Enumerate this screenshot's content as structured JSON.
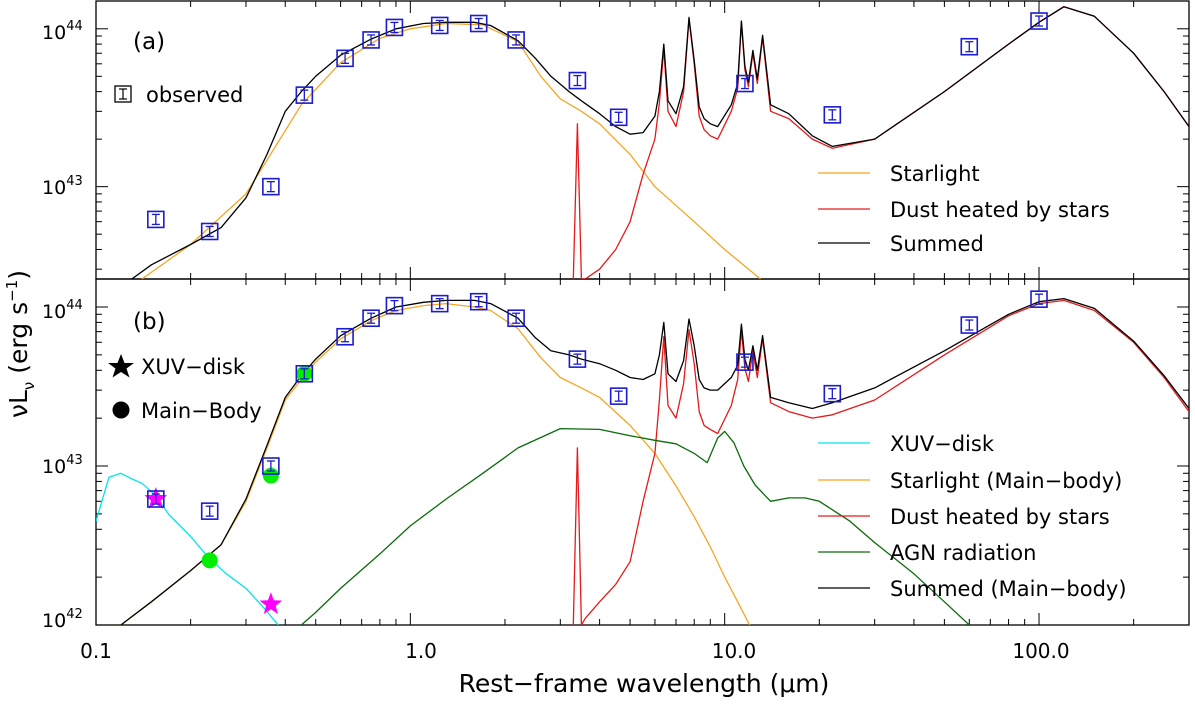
{
  "chart_data": [
    {
      "type": "line",
      "panel_label": "(a)",
      "xscale": "log",
      "yscale": "log",
      "xlim": [
        0.1,
        300
      ],
      "ylim": [
        2.6e+42,
        1.5e+44
      ],
      "observed": {
        "legend_label": "observed",
        "points": [
          {
            "x": 0.155,
            "y": 6.2e+42
          },
          {
            "x": 0.23,
            "y": 5.2e+42
          },
          {
            "x": 0.36,
            "y": 1e+43
          },
          {
            "x": 0.46,
            "y": 3.8e+43
          },
          {
            "x": 0.62,
            "y": 6.5e+43
          },
          {
            "x": 0.75,
            "y": 8.5e+43
          },
          {
            "x": 0.89,
            "y": 1.02e+44
          },
          {
            "x": 1.24,
            "y": 1.05e+44
          },
          {
            "x": 1.65,
            "y": 1.08e+44
          },
          {
            "x": 2.17,
            "y": 8.5e+43
          },
          {
            "x": 3.4,
            "y": 4.7e+43
          },
          {
            "x": 4.6,
            "y": 2.75e+43
          },
          {
            "x": 11.6,
            "y": 4.5e+43
          },
          {
            "x": 22,
            "y": 2.85e+43
          },
          {
            "x": 60,
            "y": 7.7e+43
          },
          {
            "x": 100,
            "y": 1.12e+44
          }
        ]
      },
      "series": [
        {
          "name": "Starlight",
          "color": "#f5a623",
          "x": [
            0.14,
            0.2,
            0.3,
            0.45,
            0.6,
            0.8,
            1.0,
            1.3,
            1.7,
            2.2,
            2.6,
            3.0,
            3.5,
            4.0,
            5.0,
            6.0,
            8.0,
            10.0,
            13.0
          ],
          "y": [
            2.6e+42,
            4.3e+42,
            9e+42,
            3.3e+43,
            6.1e+43,
            8.7e+43,
            1e+44,
            1.08e+44,
            1.06e+44,
            8.3e+43,
            5e+43,
            3.6e+43,
            3e+43,
            2.5e+43,
            1.6e+43,
            1e+43,
            6e+42,
            4e+42,
            2.6e+42
          ]
        },
        {
          "name": "Dust heated by stars",
          "color": "#e41a1c",
          "x": [
            3.3,
            3.4,
            3.5,
            3.6,
            4.0,
            4.5,
            5.0,
            5.5,
            6.0,
            6.2,
            6.4,
            6.6,
            7.0,
            7.4,
            7.7,
            8.0,
            8.3,
            8.6,
            9.0,
            9.5,
            10.5,
            11.0,
            11.3,
            11.6,
            11.9,
            12.3,
            12.7,
            13.2,
            14.0,
            16.0,
            19.0,
            22.0,
            30.0,
            50.0,
            80.0,
            100.0,
            120.0,
            150.0,
            200.0,
            250.0,
            300.0
          ],
          "y": [
            2.6e+42,
            2.5e+43,
            2.6e+42,
            2.6e+42,
            3e+42,
            4e+42,
            6e+42,
            1.2e+43,
            2e+43,
            3.4e+43,
            7.5e+43,
            3e+43,
            2.4e+43,
            4e+43,
            1.15e+44,
            6e+43,
            2.8e+43,
            2.3e+43,
            2.1e+43,
            2e+43,
            3e+43,
            4.2e+43,
            1.1e+44,
            5.5e+43,
            4.3e+43,
            7e+43,
            4.5e+43,
            8.8e+43,
            3e+43,
            2.7e+43,
            2e+43,
            1.75e+43,
            2e+43,
            4e+43,
            8e+43,
            1.1e+44,
            1.38e+44,
            1.2e+44,
            7e+43,
            4e+43,
            2.4e+43
          ]
        },
        {
          "name": "Summed",
          "color": "#000000",
          "x": [
            0.13,
            0.15,
            0.2,
            0.25,
            0.3,
            0.35,
            0.4,
            0.45,
            0.5,
            0.6,
            0.75,
            0.9,
            1.1,
            1.3,
            1.6,
            1.8,
            2.2,
            2.5,
            2.8,
            3.2,
            3.5,
            4.0,
            4.5,
            5.0,
            5.5,
            6.0,
            6.2,
            6.4,
            6.6,
            7.0,
            7.4,
            7.7,
            8.0,
            8.3,
            8.6,
            9.0,
            9.5,
            10.5,
            11.0,
            11.3,
            11.6,
            11.9,
            12.3,
            12.7,
            13.2,
            14.0,
            16.0,
            19.0,
            22.0,
            30.0,
            50.0,
            80.0,
            100.0,
            120.0,
            150.0,
            200.0,
            250.0,
            300.0
          ],
          "y": [
            2.6e+42,
            3.2e+42,
            4.3e+42,
            5.5e+42,
            8.5e+42,
            1.6e+43,
            3e+43,
            4e+43,
            5e+43,
            6.8e+43,
            8.6e+43,
            1e+44,
            1.08e+44,
            1.1e+44,
            1.1e+44,
            1.05e+44,
            8.4e+43,
            6.5e+43,
            5e+43,
            4e+43,
            3.5e+43,
            2.9e+43,
            2.4e+43,
            2.15e+43,
            2.2e+43,
            2.8e+43,
            4e+43,
            8e+43,
            3.5e+43,
            2.9e+43,
            4.3e+43,
            1.18e+44,
            6.3e+43,
            3.2e+43,
            2.7e+43,
            2.5e+43,
            2.4e+43,
            3.3e+43,
            4.5e+43,
            1.12e+44,
            5.8e+43,
            4.6e+43,
            7.3e+43,
            4.8e+43,
            9.1e+43,
            3.3e+43,
            2.9e+43,
            2.1e+43,
            1.8e+43,
            2e+43,
            4e+43,
            8e+43,
            1.1e+44,
            1.38e+44,
            1.2e+44,
            7e+43,
            4e+43,
            2.4e+43
          ]
        }
      ]
    },
    {
      "type": "line",
      "panel_label": "(b)",
      "xscale": "log",
      "yscale": "log",
      "xlim": [
        0.1,
        300
      ],
      "ylim": [
        1e+42,
        1.5e+44
      ],
      "observed": {
        "points": [
          {
            "x": 0.155,
            "y": 6.2e+42
          },
          {
            "x": 0.23,
            "y": 5.2e+42
          },
          {
            "x": 0.36,
            "y": 1e+43
          },
          {
            "x": 0.46,
            "y": 3.8e+43
          },
          {
            "x": 0.62,
            "y": 6.5e+43
          },
          {
            "x": 0.75,
            "y": 8.5e+43
          },
          {
            "x": 0.89,
            "y": 1.02e+44
          },
          {
            "x": 1.24,
            "y": 1.05e+44
          },
          {
            "x": 1.65,
            "y": 1.08e+44
          },
          {
            "x": 2.17,
            "y": 8.5e+43
          },
          {
            "x": 3.4,
            "y": 4.7e+43
          },
          {
            "x": 4.6,
            "y": 2.75e+43
          },
          {
            "x": 11.6,
            "y": 4.5e+43
          },
          {
            "x": 22,
            "y": 2.85e+43
          },
          {
            "x": 60,
            "y": 7.7e+43
          },
          {
            "x": 100,
            "y": 1.12e+44
          }
        ]
      },
      "xuv_disk_points": {
        "legend_label": "XUV−disk",
        "color": "#ff00ff",
        "points": [
          {
            "x": 0.155,
            "y": 6.2e+42
          },
          {
            "x": 0.36,
            "y": 1.35e+42
          }
        ]
      },
      "main_body_points": {
        "legend_label": "Main−Body",
        "color": "#00ee00",
        "points": [
          {
            "x": 0.23,
            "y": 2.55e+42
          },
          {
            "x": 0.36,
            "y": 8.7e+42
          },
          {
            "x": 0.46,
            "y": 3.8e+43
          }
        ]
      },
      "series": [
        {
          "name": "XUV−disk",
          "color": "#00e5ee",
          "x": [
            0.1,
            0.11,
            0.12,
            0.13,
            0.14,
            0.155,
            0.17,
            0.2,
            0.23,
            0.26,
            0.3,
            0.34,
            0.38
          ],
          "y": [
            4.5e+42,
            8.5e+42,
            9e+42,
            8.3e+42,
            7.8e+42,
            6.5e+42,
            5e+42,
            3.6e+42,
            2.6e+42,
            2.1e+42,
            1.7e+42,
            1.3e+42,
            1e+42
          ]
        },
        {
          "name": "Starlight (Main−body)",
          "color": "#f5a623",
          "x": [
            0.12,
            0.15,
            0.2,
            0.25,
            0.3,
            0.35,
            0.4,
            0.45,
            0.5,
            0.6,
            0.75,
            0.9,
            1.1,
            1.3,
            1.6,
            1.8,
            2.2,
            2.6,
            3.0,
            3.5,
            4.0,
            5.0,
            6.0,
            7.0,
            8.0,
            9.0,
            10.0,
            11.0,
            12.0
          ],
          "y": [
            1e+42,
            1.4e+42,
            2.2e+42,
            3.2e+42,
            6e+42,
            1.3e+43,
            2.6e+43,
            3.5e+43,
            4.5e+43,
            6.3e+43,
            8.2e+43,
            9.5e+43,
            1.02e+44,
            1.05e+44,
            1e+44,
            9.5e+43,
            7.3e+43,
            4.8e+43,
            3.6e+43,
            3.1e+43,
            2.7e+43,
            1.8e+43,
            1.2e+43,
            7.5e+42,
            4.8e+42,
            3.1e+42,
            2e+42,
            1.4e+42,
            1e+42
          ]
        },
        {
          "name": "Dust heated by stars",
          "color": "#e41a1c",
          "x": [
            3.3,
            3.4,
            3.5,
            3.6,
            4.0,
            4.5,
            5.0,
            5.5,
            6.0,
            6.2,
            6.4,
            6.6,
            7.0,
            7.4,
            7.7,
            8.0,
            8.3,
            8.6,
            9.0,
            9.5,
            10.5,
            11.0,
            11.3,
            11.6,
            11.9,
            12.3,
            12.7,
            13.2,
            14.0,
            16.0,
            19.0,
            22.0,
            30.0,
            50.0,
            80.0,
            100.0,
            120.0,
            150.0,
            200.0,
            250.0,
            300.0
          ],
          "y": [
            1e+42,
            1.3e+43,
            1e+42,
            1.1e+42,
            1.4e+42,
            1.8e+42,
            2.5e+42,
            6e+42,
            1.2e+43,
            2.6e+43,
            6.5e+43,
            2.4e+43,
            2e+43,
            3.3e+43,
            7.2e+43,
            4.4e+43,
            2.2e+43,
            1.8e+43,
            1.7e+43,
            1.6e+43,
            2.4e+43,
            3.5e+43,
            7.2e+43,
            4.1e+43,
            3.4e+43,
            5.3e+43,
            3.6e+43,
            6.3e+43,
            2.5e+43,
            2.2e+43,
            2e+43,
            2.1e+43,
            2.6e+43,
            5e+43,
            8.8e+43,
            1.05e+44,
            1.1e+44,
            9.5e+43,
            6e+43,
            3.6e+43,
            2.2e+43
          ]
        },
        {
          "name": "AGN radiation",
          "color": "#0b6b0b",
          "x": [
            0.45,
            0.5,
            0.6,
            0.8,
            1.0,
            1.3,
            1.7,
            2.2,
            3.0,
            4.0,
            5.0,
            6.0,
            7.0,
            8.0,
            8.8,
            9.5,
            10.0,
            10.7,
            11.5,
            12.5,
            14.0,
            16.0,
            18.0,
            20.0,
            25.0,
            30.0,
            40.0,
            50.0,
            60.0
          ],
          "y": [
            1e+42,
            1.2e+42,
            1.7e+42,
            2.8e+42,
            4.2e+42,
            6.2e+42,
            9e+42,
            1.3e+43,
            1.72e+43,
            1.7e+43,
            1.55e+43,
            1.45e+43,
            1.38e+43,
            1.2e+43,
            1.05e+43,
            1.5e+43,
            1.65e+43,
            1.4e+43,
            1e+43,
            7.6e+42,
            6e+42,
            6.3e+42,
            6.3e+42,
            6e+42,
            4.5e+42,
            3.3e+42,
            2.1e+42,
            1.4e+42,
            1e+42
          ]
        },
        {
          "name": "Summed (Main−body)",
          "color": "#000000",
          "x": [
            0.12,
            0.15,
            0.2,
            0.25,
            0.3,
            0.35,
            0.4,
            0.45,
            0.5,
            0.6,
            0.75,
            0.9,
            1.1,
            1.3,
            1.6,
            1.8,
            2.2,
            2.5,
            2.8,
            3.2,
            3.5,
            4.0,
            4.5,
            5.0,
            5.5,
            6.0,
            6.2,
            6.4,
            6.6,
            7.0,
            7.4,
            7.7,
            8.0,
            8.3,
            8.6,
            9.0,
            9.5,
            10.5,
            11.0,
            11.3,
            11.6,
            11.9,
            12.3,
            12.7,
            13.2,
            14.0,
            16.0,
            19.0,
            22.0,
            30.0,
            50.0,
            80.0,
            100.0,
            120.0,
            150.0,
            200.0,
            250.0,
            300.0
          ],
          "y": [
            1e+42,
            1.4e+42,
            2.2e+42,
            3.2e+42,
            6.2e+42,
            1.35e+43,
            2.7e+43,
            3.7e+43,
            4.7e+43,
            6.6e+43,
            8.5e+43,
            1e+44,
            1.07e+44,
            1.1e+44,
            1.1e+44,
            1.05e+44,
            8.5e+43,
            6.4e+43,
            5.3e+43,
            5e+43,
            4.7e+43,
            4.4e+43,
            4e+43,
            3.6e+43,
            3.5e+43,
            3.8e+43,
            5e+43,
            8e+43,
            3.8e+43,
            3.4e+43,
            4.6e+43,
            8.4e+43,
            5.7e+43,
            3.5e+43,
            3.1e+43,
            3e+43,
            3e+43,
            3.6e+43,
            4.3e+43,
            7.8e+43,
            4.7e+43,
            4e+43,
            5.7e+43,
            4e+43,
            6.6e+43,
            2.7e+43,
            2.5e+43,
            2.3e+43,
            2.5e+43,
            3.1e+43,
            5.3e+43,
            9e+43,
            1.08e+44,
            1.13e+44,
            9.8e+43,
            6.1e+43,
            3.7e+43,
            2.3e+43
          ]
        }
      ]
    }
  ],
  "axes": {
    "xlabel": "Rest−frame wavelength (μm)",
    "ylabel_main": "νL",
    "ylabel_sub": "ν",
    "ylabel_unit": "(erg s",
    "ylabel_unit_sup": "−1",
    "ylabel_unit_end": ")",
    "xticks": [
      "0.1",
      "1.0",
      "10.0",
      "100.0"
    ],
    "ytick_base": "10",
    "panel_a_yticks": [
      "43",
      "44"
    ],
    "panel_b_yticks": [
      "42",
      "43",
      "44"
    ]
  }
}
